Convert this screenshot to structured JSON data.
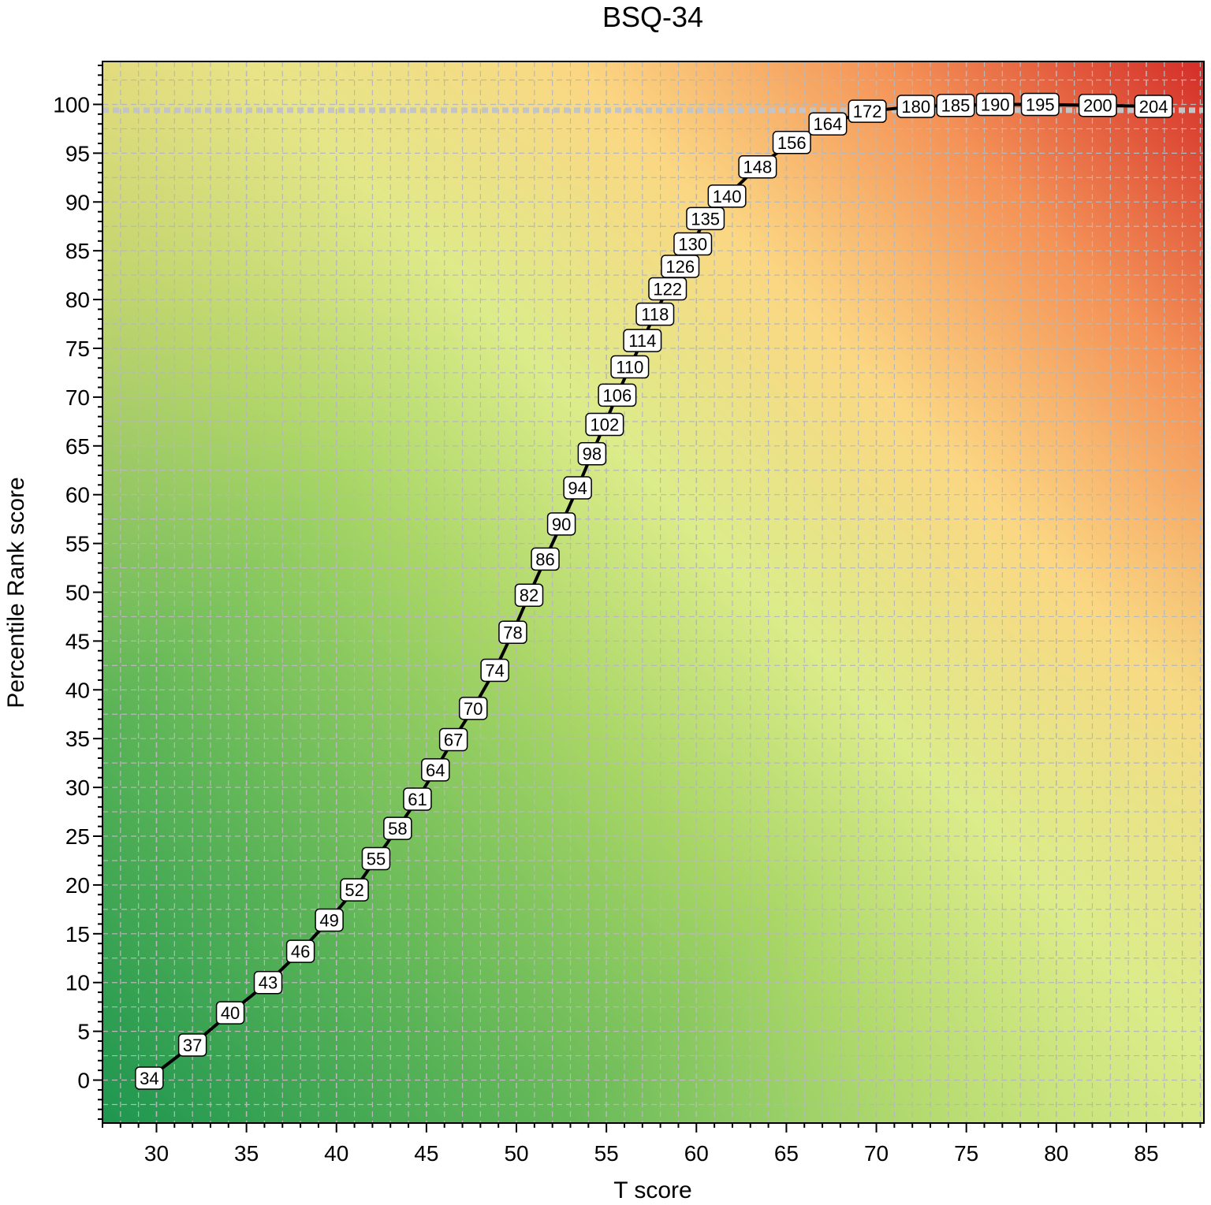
{
  "chart_data": {
    "type": "line",
    "title": "BSQ-34",
    "xlabel": "T score",
    "ylabel": "Percentile Rank score",
    "xlim": [
      27,
      88.2
    ],
    "ylim": [
      -4.4,
      104.4
    ],
    "x_ticks": [
      30,
      35,
      40,
      45,
      50,
      55,
      60,
      65,
      70,
      75,
      80,
      85
    ],
    "y_ticks": [
      0,
      5,
      10,
      15,
      20,
      25,
      30,
      35,
      40,
      45,
      50,
      55,
      60,
      65,
      70,
      75,
      80,
      85,
      90,
      95,
      100
    ],
    "grid": true,
    "reference_line_y": 99.4,
    "background": "diagonal gradient green (low) to yellow to red (high)",
    "colors": {
      "line": "#000000",
      "grid": "#b8b8b8",
      "reference_line": "#c4c4c4",
      "gradient_low": "#1e9650",
      "gradient_mid": "#dcec8a",
      "gradient_warm": "#fbd783",
      "gradient_high": "#d42d28"
    },
    "series": [
      {
        "labels": [
          "34",
          "37",
          "40",
          "43",
          "46",
          "49",
          "52",
          "55",
          "58",
          "61",
          "64",
          "67",
          "70",
          "74",
          "78",
          "82",
          "86",
          "90",
          "94",
          "98",
          "102",
          "106",
          "110",
          "114",
          "118",
          "122",
          "126",
          "130",
          "135",
          "140",
          "148",
          "156",
          "164",
          "172",
          "180",
          "185",
          "190",
          "195",
          "200",
          "204"
        ],
        "x": [
          29.6,
          32.0,
          34.1,
          36.2,
          38.0,
          39.6,
          41.0,
          42.2,
          43.4,
          44.5,
          45.5,
          46.5,
          47.6,
          48.8,
          49.8,
          50.7,
          51.6,
          52.5,
          53.4,
          54.2,
          54.9,
          55.6,
          56.3,
          57.0,
          57.7,
          58.4,
          59.1,
          59.8,
          60.5,
          61.7,
          63.4,
          65.3,
          67.3,
          69.5,
          72.2,
          74.4,
          76.6,
          79.1,
          82.3,
          85.4
        ],
        "y": [
          0.2,
          3.6,
          6.9,
          10.0,
          13.2,
          16.4,
          19.5,
          22.7,
          25.8,
          28.8,
          31.8,
          34.9,
          38.1,
          42.0,
          45.9,
          49.7,
          53.4,
          57.0,
          60.7,
          64.2,
          67.2,
          70.2,
          73.1,
          75.8,
          78.5,
          81.1,
          83.4,
          85.7,
          88.3,
          90.6,
          93.6,
          96.1,
          98.0,
          99.3,
          99.8,
          99.9,
          100.0,
          100.0,
          99.9,
          99.8
        ]
      }
    ]
  }
}
